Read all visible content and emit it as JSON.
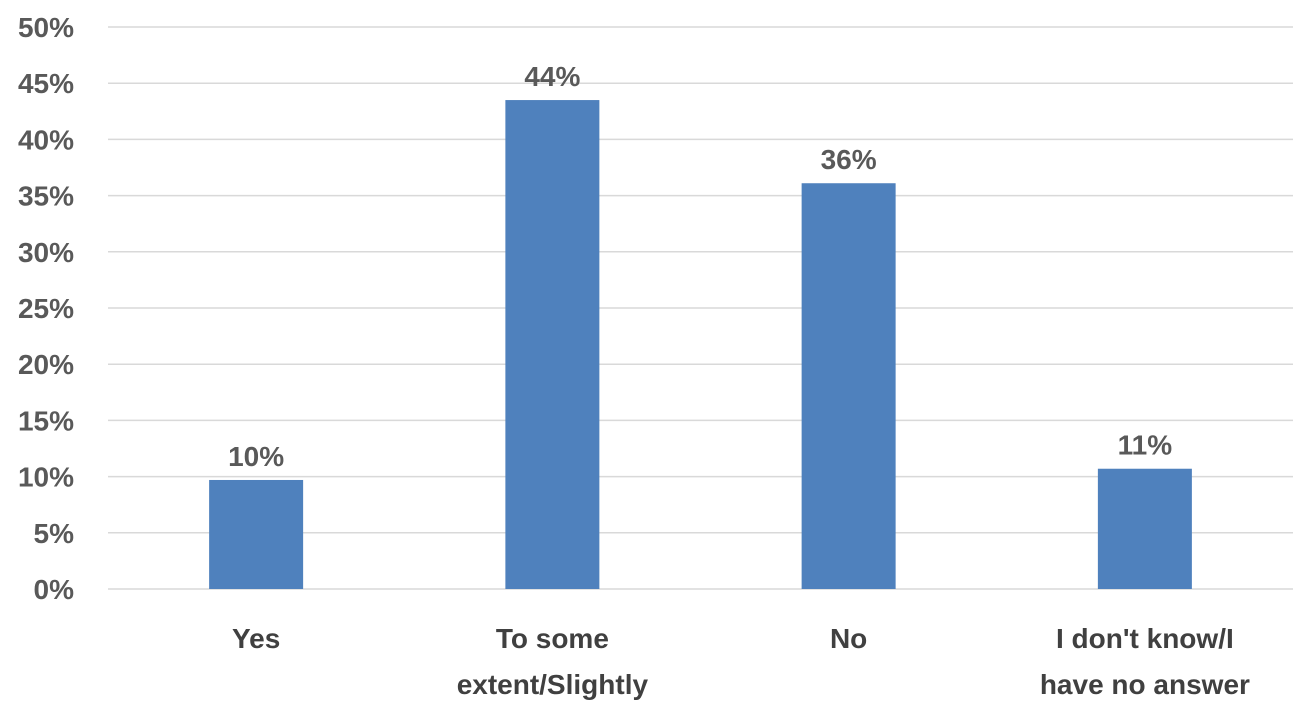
{
  "chart_data": {
    "type": "bar",
    "categories": [
      [
        "Yes"
      ],
      [
        "To some",
        "extent/Slightly"
      ],
      [
        "No"
      ],
      [
        "I don't know/I",
        "have no answer"
      ]
    ],
    "values": [
      9.7,
      43.5,
      36.1,
      10.7
    ],
    "data_labels": [
      "10%",
      "44%",
      "36%",
      "11%"
    ],
    "ylim": [
      0,
      50
    ],
    "y_ticks": [
      0,
      5,
      10,
      15,
      20,
      25,
      30,
      35,
      40,
      45,
      50
    ],
    "y_tick_labels": [
      "0%",
      "5%",
      "10%",
      "15%",
      "20%",
      "25%",
      "30%",
      "35%",
      "40%",
      "45%",
      "50%"
    ],
    "grid": true,
    "colors": {
      "bar": "#4F81BD",
      "grid": "#D9D9D9",
      "axis": "#D9D9D9"
    }
  }
}
